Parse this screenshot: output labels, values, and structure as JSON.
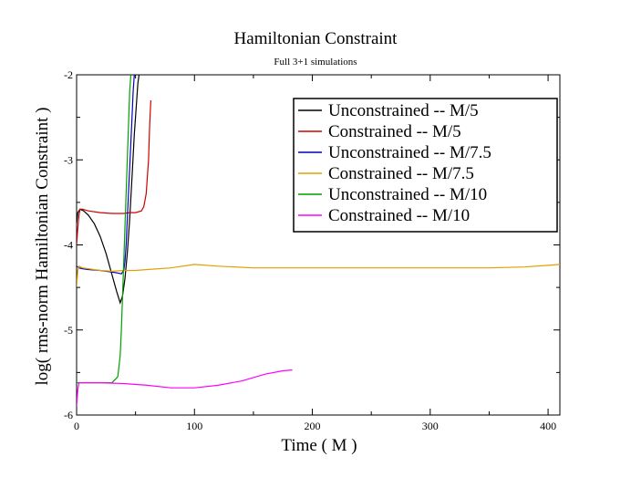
{
  "chart_data": {
    "type": "line",
    "title": "Hamiltonian Constraint",
    "subtitle": "Full 3+1 simulations",
    "xlabel": "Time ( M )",
    "ylabel": "log( rms-norm Hamiltonian Constraint )",
    "xlim": [
      0,
      410
    ],
    "ylim": [
      -6,
      -2
    ],
    "xticks": [
      0,
      100,
      200,
      300,
      400
    ],
    "yticks": [
      -6,
      -5,
      -4,
      -3,
      -2
    ],
    "xtick_labels": [
      "0",
      "100",
      "200",
      "300",
      "400"
    ],
    "ytick_labels": [
      "-6",
      "-5",
      "-4",
      "-3",
      "-2"
    ],
    "legend_position": "top-right",
    "series": [
      {
        "name": "Unconstrained -- M/5",
        "color": "#000000",
        "x": [
          0,
          1,
          3,
          6,
          10,
          15,
          20,
          25,
          30,
          34,
          37,
          39,
          41,
          43,
          45,
          47,
          49,
          51,
          52,
          53
        ],
        "y": [
          -3.75,
          -3.62,
          -3.58,
          -3.6,
          -3.65,
          -3.75,
          -3.9,
          -4.1,
          -4.35,
          -4.55,
          -4.68,
          -4.6,
          -4.4,
          -4.1,
          -3.7,
          -3.2,
          -2.7,
          -2.3,
          -2.1,
          -2.0
        ]
      },
      {
        "name": "Constrained -- M/5",
        "color": "#d00000",
        "x": [
          0,
          1,
          2,
          3,
          5,
          10,
          20,
          30,
          40,
          45,
          50,
          55,
          57,
          59,
          61,
          62,
          63
        ],
        "y": [
          -4.0,
          -3.8,
          -3.65,
          -3.58,
          -3.58,
          -3.6,
          -3.62,
          -3.63,
          -3.63,
          -3.62,
          -3.62,
          -3.6,
          -3.55,
          -3.4,
          -3.0,
          -2.6,
          -2.3
        ]
      },
      {
        "name": "Unconstrained -- M/7.5",
        "color": "#0000c0",
        "x": [
          0,
          2,
          5,
          10,
          20,
          30,
          35,
          38,
          40,
          41,
          42,
          43,
          44,
          45,
          46,
          47,
          48,
          49
        ],
        "y": [
          -4.25,
          -4.27,
          -4.28,
          -4.29,
          -4.3,
          -4.32,
          -4.33,
          -4.34,
          -4.3,
          -4.2,
          -4.0,
          -3.7,
          -3.4,
          -3.1,
          -2.8,
          -2.5,
          -2.2,
          -2.0
        ]
      },
      {
        "name": "Constrained -- M/7.5",
        "color": "#e0a000",
        "x": [
          0,
          1,
          2,
          5,
          10,
          20,
          30,
          40,
          50,
          60,
          80,
          100,
          120,
          150,
          200,
          250,
          300,
          350,
          380,
          400,
          410
        ],
        "y": [
          -4.5,
          -4.3,
          -4.25,
          -4.27,
          -4.28,
          -4.3,
          -4.31,
          -4.3,
          -4.3,
          -4.29,
          -4.27,
          -4.23,
          -4.25,
          -4.27,
          -4.27,
          -4.27,
          -4.27,
          -4.27,
          -4.26,
          -4.24,
          -4.23
        ]
      },
      {
        "name": "Unconstrained -- M/10",
        "color": "#00a000",
        "x": [
          0,
          5,
          10,
          20,
          30,
          35,
          37,
          38,
          39,
          40,
          41,
          42,
          43,
          44,
          45,
          46
        ],
        "y": [
          -5.62,
          -5.62,
          -5.62,
          -5.62,
          -5.62,
          -5.55,
          -5.3,
          -5.0,
          -4.6,
          -4.2,
          -3.8,
          -3.4,
          -3.0,
          -2.6,
          -2.2,
          -2.0
        ]
      },
      {
        "name": "Constrained -- M/10",
        "color": "#ff00ff",
        "x": [
          0,
          1,
          2,
          5,
          20,
          40,
          60,
          80,
          100,
          120,
          140,
          160,
          175,
          183
        ],
        "y": [
          -5.9,
          -5.7,
          -5.62,
          -5.62,
          -5.62,
          -5.63,
          -5.65,
          -5.68,
          -5.68,
          -5.65,
          -5.6,
          -5.52,
          -5.48,
          -5.47
        ]
      }
    ]
  }
}
